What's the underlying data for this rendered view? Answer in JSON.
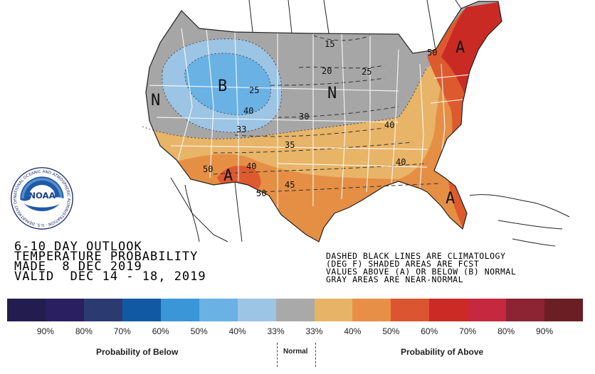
{
  "map": {
    "outlook_lines": [
      "6-10 DAY OUTLOOK",
      "TEMPERATURE PROBABILITY",
      "MADE  8 DEC 2019",
      "VALID  DEC 14 - 18, 2019"
    ],
    "note_lines": [
      "DASHED BLACK LINES ARE CLIMATOLOGY",
      "(DEG F) SHADED AREAS ARE FCST",
      "VALUES ABOVE (A) OR BELOW (B) NORMAL",
      "GRAY AREAS ARE NEAR-NORMAL"
    ],
    "region_labels": {
      "below": "B",
      "near_normal": "N",
      "above": "A"
    },
    "contour_labels": [
      "15",
      "20",
      "25",
      "25",
      "30",
      "33",
      "35",
      "40",
      "40",
      "40",
      "40",
      "45",
      "50",
      "50",
      "50"
    ]
  },
  "logo": {
    "text": "NOAA",
    "ring_text": "NATIONAL OCEANIC AND ATMOSPHERIC ADMINISTRATION · U.S. DEPARTMENT OF COMMERCE"
  },
  "scale": {
    "colors": [
      "#231c4e",
      "#2a1f60",
      "#2c3a72",
      "#115aa3",
      "#3b96d8",
      "#6ab1e4",
      "#9cc4e4",
      "#a9a9a9",
      "#e7b467",
      "#e88f47",
      "#db5530",
      "#cc2a24",
      "#c5283f",
      "#8c2433",
      "#6b1f25"
    ],
    "labels": [
      "90%",
      "80%",
      "70%",
      "60%",
      "50%",
      "40%",
      "33%",
      "33%",
      "40%",
      "50%",
      "60%",
      "70%",
      "80%",
      "90%"
    ],
    "below_label": "Probability of Below",
    "normal_label": "Normal",
    "above_label": "Probability of Above"
  }
}
